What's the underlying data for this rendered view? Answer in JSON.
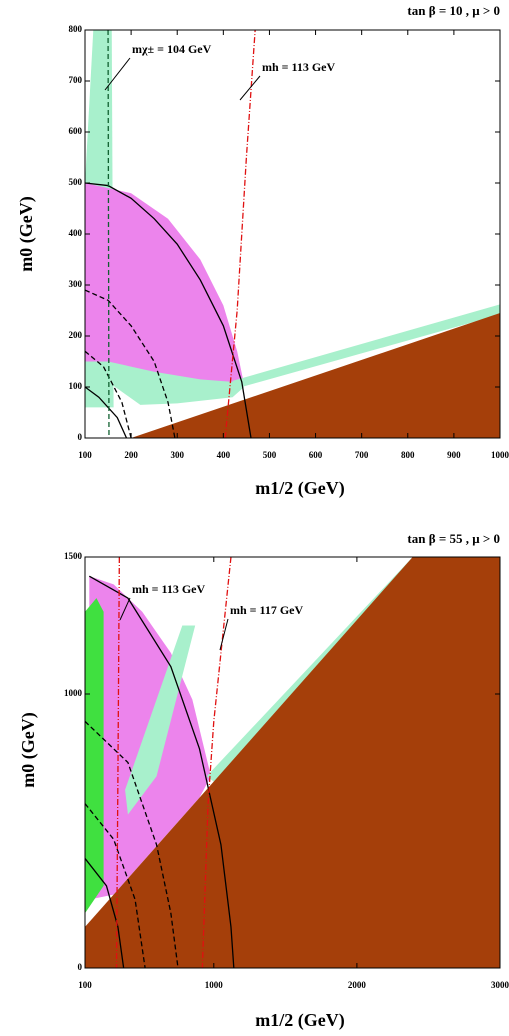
{
  "chart_data": [
    {
      "type": "region",
      "title": "tan β = 10 ,  μ > 0",
      "xlabel": "m1/2 (GeV)",
      "ylabel": "m0 (GeV)",
      "xlim": [
        100,
        1000
      ],
      "ylim": [
        0,
        800
      ],
      "xticks": [
        100,
        200,
        300,
        400,
        500,
        600,
        700,
        800,
        900,
        1000
      ],
      "yticks": [
        0,
        100,
        200,
        300,
        400,
        500,
        600,
        700,
        800
      ],
      "regions": [
        {
          "color": "#a8f0cc",
          "x": [
            118,
            158,
            162,
            100,
            100
          ],
          "y": [
            800,
            800,
            60,
            60,
            500
          ]
        },
        {
          "color": "#ec84ec",
          "x": [
            100,
            200,
            280,
            350,
            400,
            430,
            445,
            420,
            300,
            200,
            150,
            100
          ],
          "y": [
            500,
            480,
            430,
            350,
            260,
            170,
            105,
            95,
            80,
            120,
            150,
            150
          ]
        },
        {
          "color": "#a8f0cc",
          "x": [
            150,
            250,
            350,
            420,
            445,
            420,
            300,
            220,
            150
          ],
          "y": [
            150,
            130,
            115,
            110,
            100,
            80,
            68,
            65,
            110
          ]
        },
        {
          "color": "#a8f0cc",
          "x": [
            420,
            1000,
            1000,
            420
          ],
          "y": [
            112,
            262,
            242,
            95
          ]
        },
        {
          "color": "#a53f0a",
          "x": [
            200,
            1000,
            1000,
            200
          ],
          "y": [
            0,
            245,
            0,
            0
          ]
        }
      ],
      "lines": [
        {
          "color": "#000000",
          "dash": "solid",
          "x": [
            100,
            150,
            200,
            250,
            300,
            350,
            400,
            440,
            460
          ],
          "y": [
            500,
            495,
            470,
            430,
            380,
            310,
            220,
            110,
            0
          ]
        },
        {
          "color": "#000000",
          "dash": "dashed",
          "x": [
            100,
            150,
            200,
            250,
            280,
            295
          ],
          "y": [
            290,
            270,
            220,
            150,
            70,
            0
          ]
        },
        {
          "color": "#000000",
          "dash": "dashed",
          "x": [
            100,
            140,
            180,
            200
          ],
          "y": [
            170,
            140,
            70,
            0
          ]
        },
        {
          "color": "#000000",
          "dash": "solid",
          "x": [
            100,
            130,
            170,
            190
          ],
          "y": [
            100,
            80,
            40,
            0
          ]
        },
        {
          "color": "#106030",
          "dash": "dashed",
          "x": [
            150,
            152
          ],
          "y": [
            800,
            0
          ]
        },
        {
          "color": "#e01010",
          "dash": "dashdot",
          "x": [
            404,
            430,
            450,
            469
          ],
          "y": [
            0,
            250,
            550,
            800
          ]
        }
      ],
      "annotations": [
        "mχ± = 104 GeV",
        "mh = 113 GeV"
      ]
    },
    {
      "type": "region",
      "title": "tan β = 55 ,  μ > 0",
      "xlabel": "m1/2 (GeV)",
      "ylabel": "m0 (GeV)",
      "xlim": [
        100,
        3000
      ],
      "ylim": [
        0,
        1500
      ],
      "xticks": [
        100,
        1000,
        2000,
        3000
      ],
      "yticks": [
        0,
        1000,
        1500
      ],
      "regions": [
        {
          "color": "#ec84ec",
          "x": [
            130,
            300,
            500,
            700,
            850,
            980,
            900,
            700,
            500,
            300,
            130
          ],
          "y": [
            1430,
            1400,
            1300,
            1150,
            980,
            700,
            622,
            504,
            386,
            268,
            250
          ]
        },
        {
          "color": "#a8f0cc",
          "x": [
            780,
            870,
            600,
            400,
            380
          ],
          "y": [
            1250,
            1250,
            700,
            560,
            650
          ]
        },
        {
          "color": "#40e040",
          "x": [
            100,
            230,
            230,
            180,
            100
          ],
          "y": [
            200,
            300,
            1300,
            1350,
            1300
          ]
        },
        {
          "color": "#a8f0cc",
          "x": [
            950,
            2390,
            2460,
            1000
          ],
          "y": [
            700,
            1500,
            1500,
            680
          ]
        },
        {
          "color": "#a53f0a",
          "x": [
            100,
            2390,
            3000,
            3000,
            100
          ],
          "y": [
            150,
            1500,
            1500,
            0,
            0
          ]
        }
      ],
      "lines": [
        {
          "color": "#000000",
          "dash": "solid",
          "x": [
            130,
            400,
            700,
            900,
            1050,
            1120,
            1140
          ],
          "y": [
            1430,
            1350,
            1100,
            800,
            450,
            150,
            0
          ]
        },
        {
          "color": "#000000",
          "dash": "dashed",
          "x": [
            100,
            400,
            600,
            700,
            750
          ],
          "y": [
            900,
            750,
            450,
            200,
            0
          ]
        },
        {
          "color": "#000000",
          "dash": "dashed",
          "x": [
            100,
            300,
            450,
            520
          ],
          "y": [
            600,
            470,
            250,
            0
          ]
        },
        {
          "color": "#000000",
          "dash": "solid",
          "x": [
            100,
            250,
            330,
            370
          ],
          "y": [
            400,
            300,
            150,
            0
          ]
        },
        {
          "color": "#e01010",
          "dash": "dashdot",
          "x": [
            340,
            330,
            320
          ],
          "y": [
            1500,
            700,
            0
          ]
        },
        {
          "color": "#e01010",
          "dash": "dashdot",
          "x": [
            1120,
            1000,
            960,
            920
          ],
          "y": [
            1500,
            900,
            600,
            0
          ]
        }
      ],
      "annotations": [
        "mh = 113 GeV",
        "mh = 117 GeV"
      ]
    }
  ]
}
